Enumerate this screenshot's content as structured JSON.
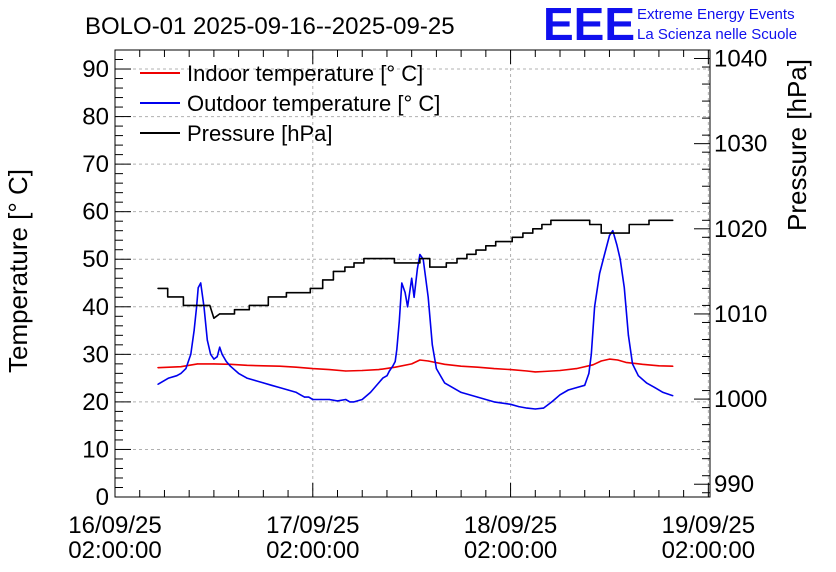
{
  "chart_data": {
    "type": "line",
    "title": "BOLO-01 2025-09-16--2025-09-25",
    "logo": {
      "letters": "EEE",
      "line1": "Extreme Energy Events",
      "line2": "La Scienza nelle Scuole"
    },
    "ylabel": "Temperature [° C]",
    "y2label": "Pressure [hPa]",
    "xlim": [
      0,
      72.2
    ],
    "ylim": [
      0,
      94
    ],
    "y2lim": [
      988.5,
      1041
    ],
    "yticks": [
      0,
      10,
      20,
      30,
      40,
      50,
      60,
      70,
      80,
      90
    ],
    "y2ticks": [
      990,
      1000,
      1010,
      1020,
      1030,
      1040
    ],
    "xticks": [
      {
        "x": 0,
        "date": "16/09/25",
        "time": "02:00:00"
      },
      {
        "x": 24,
        "date": "17/09/25",
        "time": "02:00:00"
      },
      {
        "x": 48,
        "date": "18/09/25",
        "time": "02:00:00"
      },
      {
        "x": 72,
        "date": "19/09/25",
        "time": "02:00:00"
      }
    ],
    "grid": true,
    "legend_position": "top-left",
    "series": [
      {
        "name": "Indoor temperature [° C]",
        "color": "#ee0000",
        "axis": "left",
        "x": [
          5.2,
          8,
          10,
          12,
          14,
          16,
          18,
          20,
          22,
          24,
          26,
          28,
          30,
          32,
          34,
          36,
          37,
          38,
          40,
          42,
          44,
          46,
          48,
          50,
          51,
          52,
          54,
          56,
          58,
          59,
          60,
          61,
          62,
          64,
          66,
          67.7
        ],
        "y": [
          27.2,
          27.4,
          28,
          28,
          27.9,
          27.7,
          27.6,
          27.5,
          27.3,
          27,
          26.8,
          26.5,
          26.6,
          26.8,
          27.3,
          28,
          28.8,
          28.6,
          27.9,
          27.5,
          27.3,
          27,
          26.8,
          26.5,
          26.3,
          26.4,
          26.6,
          27,
          27.8,
          28.6,
          29,
          28.8,
          28.3,
          27.9,
          27.6,
          27.5
        ]
      },
      {
        "name": "Outdoor temperature [° C]",
        "color": "#0000ee",
        "axis": "left",
        "x": [
          5.2,
          6.5,
          7.5,
          8,
          8.6,
          9.2,
          9.6,
          9.9,
          10.1,
          10.4,
          10.8,
          11.2,
          11.6,
          12,
          12.4,
          12.7,
          13,
          13.5,
          14,
          15,
          16,
          17,
          18,
          19,
          20,
          21,
          22,
          22.5,
          23,
          23.5,
          24,
          25,
          26,
          27,
          28,
          28.5,
          29,
          30,
          31,
          32,
          32.5,
          33,
          33.3,
          33.7,
          34,
          34.2,
          34.5,
          34.8,
          35.2,
          35.5,
          36,
          36.3,
          36.7,
          37,
          37.4,
          38,
          38.5,
          39,
          40,
          42,
          44,
          46,
          48,
          49,
          50,
          51,
          52,
          53,
          54,
          55,
          56,
          57,
          57.5,
          57.8,
          58.2,
          58.8,
          59.4,
          60,
          60.4,
          60.9,
          61.3,
          61.8,
          62.3,
          62.8,
          63.5,
          64.5,
          65.5,
          66.5,
          67.7
        ],
        "y": [
          23.7,
          25,
          25.5,
          26,
          27,
          30,
          35,
          40,
          44,
          45,
          40,
          33,
          30,
          29,
          29.5,
          31.5,
          30,
          28.5,
          27.5,
          26,
          25,
          24.5,
          24,
          23.5,
          23,
          22.5,
          22,
          21.5,
          21,
          21,
          20.5,
          20.5,
          20.5,
          20.2,
          20.5,
          20,
          20,
          20.5,
          22,
          24,
          25,
          25.5,
          26.5,
          27.5,
          28.5,
          31,
          37,
          45,
          43,
          40,
          46,
          42,
          48,
          51,
          50,
          42,
          32,
          27,
          24,
          22,
          21,
          20,
          19.5,
          19,
          18.7,
          18.5,
          18.7,
          20,
          21.5,
          22.5,
          23,
          23.5,
          26,
          30,
          40,
          47,
          51,
          55,
          56,
          53,
          50,
          44,
          34,
          28,
          25.5,
          24,
          23,
          22,
          21.3
        ]
      },
      {
        "name": "Pressure [hPa]",
        "color": "#000000",
        "axis": "right",
        "x": [
          5.2,
          6.4,
          6.4,
          8.3,
          8.3,
          9.6,
          9.6,
          11.5,
          12,
          12.7,
          12.7,
          14.5,
          14.5,
          16.3,
          16.3,
          18.6,
          18.6,
          20.8,
          20.8,
          23.7,
          23.7,
          25.2,
          25.2,
          26.5,
          26.5,
          27.9,
          27.9,
          29,
          29,
          30.2,
          30.2,
          33.9,
          33.9,
          37,
          37,
          38.2,
          38.2,
          40.2,
          40.2,
          41.5,
          41.5,
          42.7,
          42.7,
          43.8,
          43.8,
          45,
          45,
          46.2,
          46.2,
          48.2,
          48.2,
          49.5,
          49.5,
          50.7,
          50.7,
          51.8,
          51.8,
          52.9,
          52.9,
          57.6,
          57.6,
          59,
          59,
          62.4,
          62.4,
          64.8,
          64.8,
          67.7
        ],
        "y": [
          1013,
          1013,
          1012,
          1012,
          1011,
          1011,
          1011,
          1011,
          1009.5,
          1010,
          1010,
          1010,
          1010.5,
          1010.5,
          1011,
          1011,
          1012,
          1012,
          1012.5,
          1012.5,
          1013,
          1013,
          1014,
          1014,
          1015,
          1015,
          1015.5,
          1015.5,
          1016,
          1016,
          1016.5,
          1016.5,
          1016,
          1016,
          1016.5,
          1016.5,
          1015.5,
          1015.5,
          1016,
          1016,
          1016.5,
          1016.5,
          1017,
          1017,
          1017.5,
          1017.5,
          1018,
          1018,
          1018.5,
          1018.5,
          1019,
          1019,
          1019.5,
          1019.5,
          1020,
          1020,
          1020.5,
          1020.5,
          1021,
          1021,
          1020.5,
          1020.5,
          1019.5,
          1019.5,
          1020.5,
          1020.5,
          1021,
          1021
        ]
      }
    ]
  }
}
